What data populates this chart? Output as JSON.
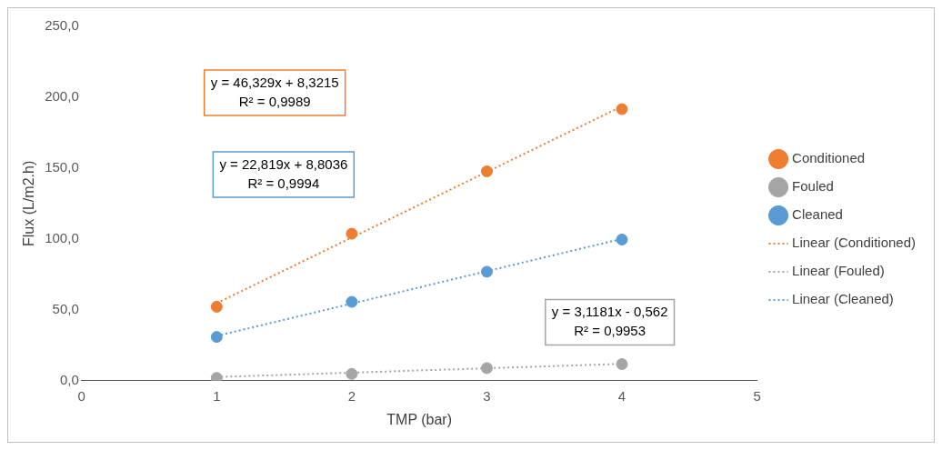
{
  "chart_data": {
    "type": "scatter",
    "xlabel": "TMP (bar)",
    "ylabel": "Flux (L/m2.h)",
    "x": [
      1,
      2,
      3,
      4
    ],
    "series": [
      {
        "name": "Conditioned",
        "color": "#ed7d31",
        "values": [
          52.2,
          103.7,
          147.7,
          191.6
        ]
      },
      {
        "name": "Fouled",
        "color": "#a5a5a5",
        "values": [
          2.0,
          4.8,
          8.9,
          11.7
        ]
      },
      {
        "name": "Cleaned",
        "color": "#5b9bd5",
        "values": [
          30.9,
          55.6,
          76.9,
          99.6
        ]
      },
      {
        "name": "Linear (Conditioned)",
        "type": "line",
        "color": "#ed7d31",
        "line_style": "dotted",
        "marker": "none",
        "values": [
          54.7,
          101.0,
          147.3,
          193.6
        ]
      },
      {
        "name": "Linear (Fouled)",
        "type": "line",
        "color": "#a5a5a5",
        "line_style": "dotted",
        "marker": "none",
        "values": [
          2.6,
          5.7,
          8.8,
          11.9
        ]
      },
      {
        "name": "Linear (Cleaned)",
        "type": "line",
        "color": "#5b9bd5",
        "line_style": "dotted",
        "marker": "none",
        "values": [
          31.6,
          54.4,
          77.3,
          100.1
        ]
      }
    ],
    "xlim": [
      0,
      5
    ],
    "xticks": [
      0,
      1,
      2,
      3,
      4,
      5
    ],
    "ylim": [
      0,
      250
    ],
    "yticks": [
      {
        "value": 0,
        "label": "0,0"
      },
      {
        "value": 50,
        "label": "50,0"
      },
      {
        "value": 100,
        "label": "100,0"
      },
      {
        "value": 150,
        "label": "150,0"
      },
      {
        "value": 200,
        "label": "200,0"
      },
      {
        "value": 250,
        "label": "250,0"
      }
    ],
    "marker": "circle",
    "legend": "right",
    "grid": false,
    "annotations": [
      "y = 46,329x + 8,3215\nR² = 0,9989",
      "y = 3,1181x - 0,562\nR² = 0,9953",
      "y = 22,819x + 8,8036\nR² = 0,9994"
    ]
  }
}
